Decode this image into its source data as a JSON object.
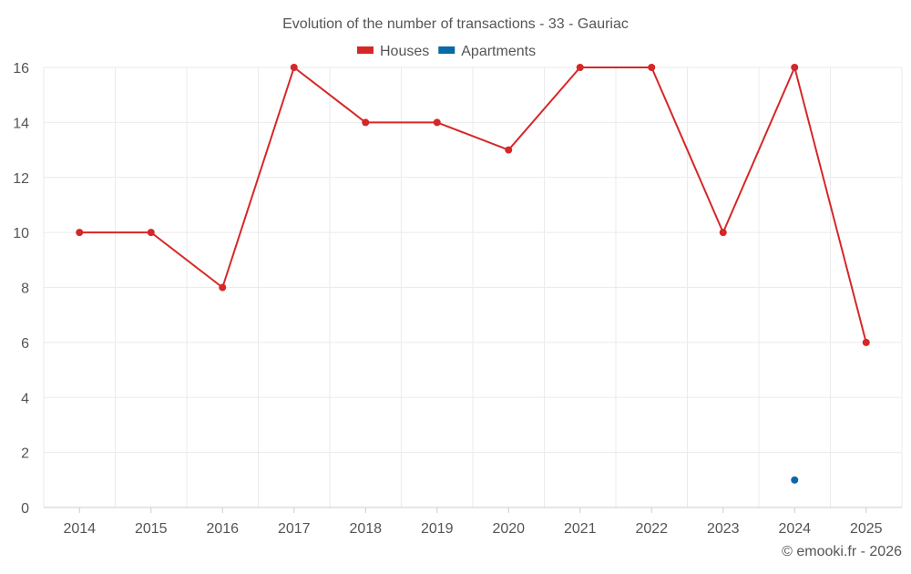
{
  "chart_data": {
    "type": "line",
    "title": "Evolution of the number of transactions - 33 - Gauriac",
    "categories": [
      "2014",
      "2015",
      "2016",
      "2017",
      "2018",
      "2019",
      "2020",
      "2021",
      "2022",
      "2023",
      "2024",
      "2025"
    ],
    "series": [
      {
        "name": "Houses",
        "color": "#d62728",
        "values": [
          10,
          10,
          8,
          16,
          14,
          14,
          13,
          16,
          16,
          10,
          16,
          6
        ]
      },
      {
        "name": "Apartments",
        "color": "#0868a8",
        "values": [
          null,
          null,
          null,
          null,
          null,
          null,
          null,
          null,
          null,
          null,
          1,
          null
        ]
      }
    ],
    "yticks": [
      0,
      2,
      4,
      6,
      8,
      10,
      12,
      14,
      16
    ],
    "ylim": [
      0,
      16
    ],
    "xlabel": "",
    "ylabel": "",
    "grid": true,
    "legend": "top-center",
    "credit": "© emooki.fr - 2026"
  }
}
